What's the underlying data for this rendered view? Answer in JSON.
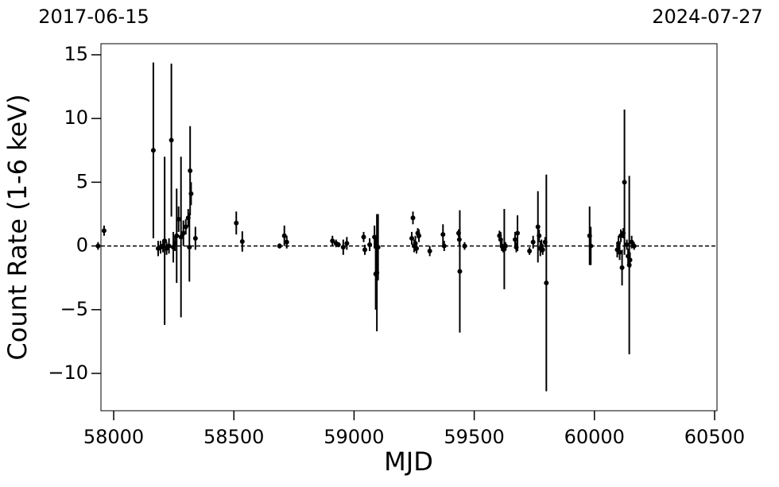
{
  "chart_data": {
    "type": "errorbar",
    "xlabel": "MJD",
    "ylabel": "Count Rate (1-6 keV)",
    "annotations": [
      "2017-06-15",
      "2024-07-27"
    ],
    "xlim": [
      57947,
      60510
    ],
    "ylim": [
      -12.93,
      15.87
    ],
    "xticks": [
      58000,
      58500,
      59000,
      59500,
      60000,
      60500
    ],
    "yticks": [
      {
        "value": -10,
        "label": "−10"
      },
      {
        "value": -5,
        "label": "−5"
      },
      0,
      5,
      10,
      15
    ],
    "reference_line": 0,
    "series": [
      {
        "color": "#000000",
        "x": [
          57935,
          57960,
          58165,
          58185,
          58195,
          58205,
          58212,
          58220,
          58230,
          58240,
          58248,
          58255,
          58262,
          58270,
          58280,
          58290,
          58300,
          58310,
          58315,
          58318,
          58322,
          58340,
          58510,
          58535,
          58690,
          58710,
          58720,
          58910,
          58925,
          58935,
          58955,
          58970,
          59040,
          59045,
          59065,
          59085,
          59090,
          59095,
          59100,
          59240,
          59245,
          59250,
          59255,
          59260,
          59265,
          59270,
          59315,
          59370,
          59375,
          59435,
          59438,
          59440,
          59460,
          59605,
          59610,
          59615,
          59620,
          59625,
          59630,
          59670,
          59675,
          59680,
          59730,
          59745,
          59765,
          59770,
          59775,
          59780,
          59785,
          59795,
          59800,
          59980,
          59985,
          60095,
          60100,
          60105,
          60110,
          60115,
          60120,
          60125,
          60135,
          60140,
          60145,
          60148,
          60155,
          60165
        ],
        "values": [
          0,
          1.2,
          7.5,
          -0.2,
          -0.1,
          0,
          0.4,
          -0.2,
          0,
          8.3,
          -0.1,
          0.2,
          0.8,
          2.1,
          0.7,
          1.0,
          1.5,
          2.2,
          -0.1,
          5.9,
          4.1,
          0.6,
          1.8,
          0.35,
          0,
          0.8,
          0.3,
          0.4,
          0.2,
          0.1,
          -0.1,
          0.2,
          0.7,
          -0.3,
          0.1,
          0.7,
          -2.2,
          -2.1,
          -0.1,
          0.6,
          2.2,
          0,
          0.2,
          -0.2,
          1.0,
          0.8,
          -0.4,
          0.9,
          0,
          1.0,
          0.5,
          -2.0,
          0,
          0.8,
          0.5,
          0,
          -0.2,
          -0.25,
          0,
          0.5,
          -0.1,
          1.0,
          -0.4,
          0.3,
          1.5,
          0.8,
          -0.2,
          0,
          -0.3,
          0.3,
          -2.9,
          0.8,
          0,
          -0.3,
          0.2,
          -0.5,
          0.8,
          -1.7,
          1.0,
          5.0,
          0.1,
          -0.8,
          -1.5,
          -1.1,
          0.3,
          0
        ],
        "errors": [
          0.3,
          0.4,
          6.9,
          0.6,
          0.5,
          0.5,
          6.6,
          0.5,
          0.6,
          6.0,
          1.2,
          0.6,
          3.7,
          1.0,
          6.3,
          1.0,
          0.6,
          0.7,
          2.7,
          3.5,
          0.9,
          0.9,
          0.9,
          0.8,
          0.2,
          0.8,
          0.5,
          0.4,
          0.3,
          0.2,
          0.6,
          0.5,
          0.4,
          0.4,
          0.5,
          0.9,
          2.8,
          4.6,
          2.6,
          0.5,
          0.5,
          0.5,
          0.6,
          0.4,
          0.4,
          0.5,
          0.4,
          0.8,
          0.4,
          0.3,
          0.5,
          4.8,
          0.3,
          0.4,
          0.6,
          0.4,
          0.3,
          3.15,
          0.3,
          0.6,
          0.4,
          1.4,
          0.3,
          0.5,
          2.8,
          0.5,
          0.6,
          0.5,
          0.4,
          0.4,
          8.5,
          2.3,
          1.5,
          0.6,
          0.6,
          0.6,
          0.5,
          1.4,
          0.4,
          5.7,
          0.4,
          0.6,
          7.0,
          0.6,
          0.5,
          0.3
        ]
      }
    ]
  }
}
